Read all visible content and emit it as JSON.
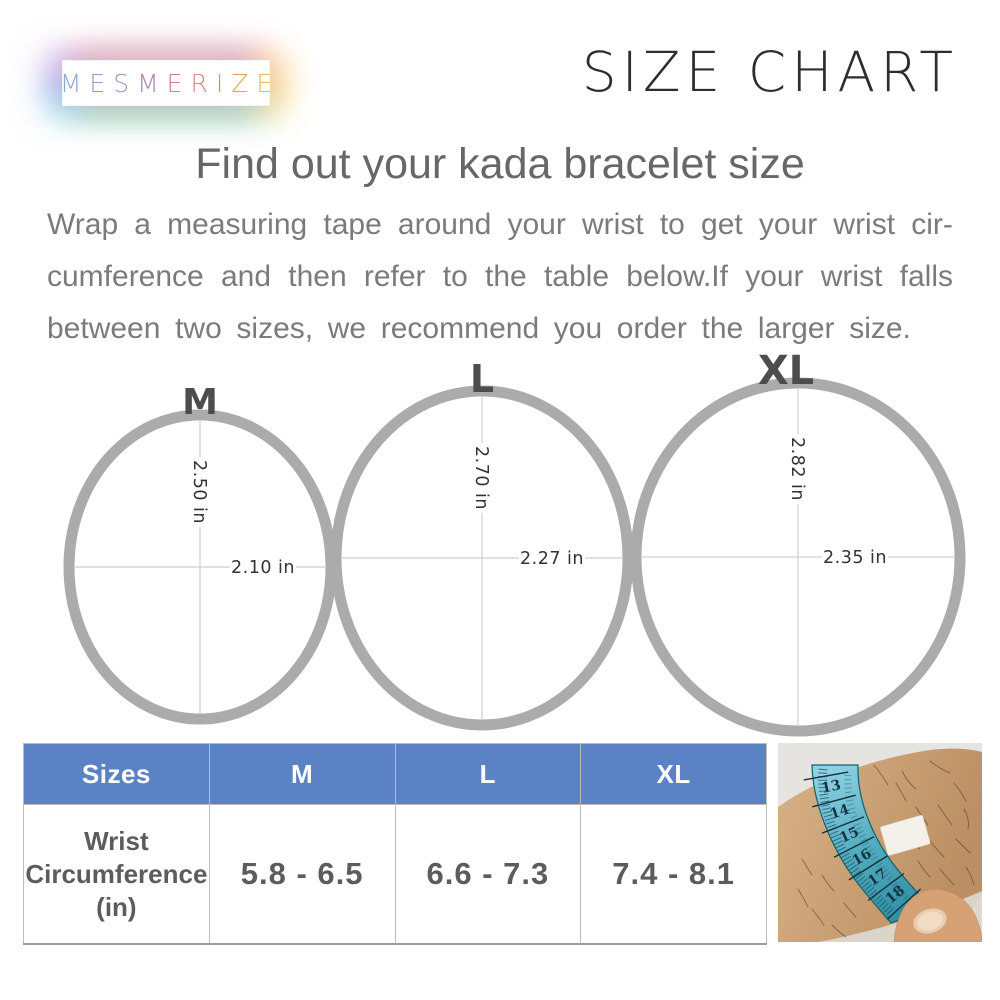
{
  "brand": {
    "name": "MESMERIZE",
    "letters": [
      {
        "char": "M",
        "color": "#8ca8cd"
      },
      {
        "char": "E",
        "color": "#9a97c9"
      },
      {
        "char": "S",
        "color": "#a78cc0"
      },
      {
        "char": "M",
        "color": "#b07fb0"
      },
      {
        "char": "E",
        "color": "#c97f97"
      },
      {
        "char": "R",
        "color": "#dc8384"
      },
      {
        "char": "I",
        "color": "#e08e62"
      },
      {
        "char": "Z",
        "color": "#e3a254"
      },
      {
        "char": "E",
        "color": "#ddbb52"
      }
    ]
  },
  "title": "SIZE CHART",
  "heading": "Find out your kada bracelet size",
  "description": {
    "lines": [
      "Wrap a measuring tape around your wrist to get your wrist cir-",
      "cumference and then refer to the table below.If your wrist falls",
      "between two sizes, we recommend you order the larger size."
    ]
  },
  "diagram": {
    "sizes": [
      {
        "label": "M",
        "vertical": "2.50 in",
        "horizontal": "2.10 in"
      },
      {
        "label": "L",
        "vertical": "2.70 in",
        "horizontal": "2.27 in"
      },
      {
        "label": "XL",
        "vertical": "2.82 in",
        "horizontal": "2.35 in"
      }
    ]
  },
  "table": {
    "headers": [
      "Sizes",
      "M",
      "L",
      "XL"
    ],
    "row_label_lines": [
      "Wrist",
      "Circumference",
      "(in)"
    ],
    "values": [
      "5.8 - 6.5",
      "6.6 - 7.3",
      "7.4 - 8.1"
    ]
  },
  "photo": {
    "tape_numbers": [
      "13",
      "14",
      "15",
      "16",
      "17",
      "18"
    ]
  },
  "chart_data": {
    "type": "table",
    "columns": [
      "Sizes",
      "M",
      "L",
      "XL"
    ],
    "rows": [
      [
        "Wrist Circumference (in)",
        "5.8 - 6.5",
        "6.6 - 7.3",
        "7.4 - 8.1"
      ]
    ],
    "ring_dimensions_in": {
      "M": {
        "height": 2.5,
        "width": 2.1
      },
      "L": {
        "height": 2.7,
        "width": 2.27
      },
      "XL": {
        "height": 2.82,
        "width": 2.35
      }
    }
  },
  "colors": {
    "table_header_bg": "#5b82c4",
    "ring_stroke": "#ababab",
    "crosshair": "#cfcfcf",
    "tape_teal": "#4fa9bd"
  }
}
